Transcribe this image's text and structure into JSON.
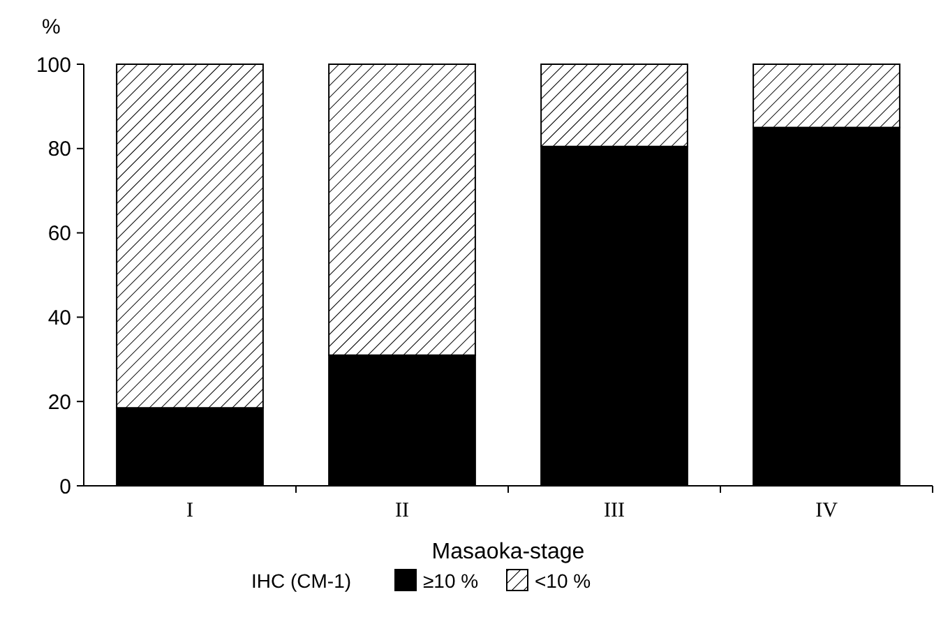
{
  "chart_data": {
    "type": "bar",
    "stacked": true,
    "ylabel": "%",
    "xlabel": "Masaoka-stage",
    "legend_title": "IHC (CM-1)",
    "legend": "bottom",
    "categories": [
      "I",
      "II",
      "III",
      "IV"
    ],
    "series": [
      {
        "name": "≥10 %",
        "color": "#000000",
        "values": [
          18.5,
          31,
          80.5,
          85
        ]
      },
      {
        "name": "<10 %",
        "color": "#000000",
        "values": [
          81.5,
          69,
          19.5,
          15
        ]
      }
    ],
    "ylim": [
      0,
      100
    ],
    "yticks": [
      0,
      20,
      40,
      60,
      80,
      100
    ]
  }
}
